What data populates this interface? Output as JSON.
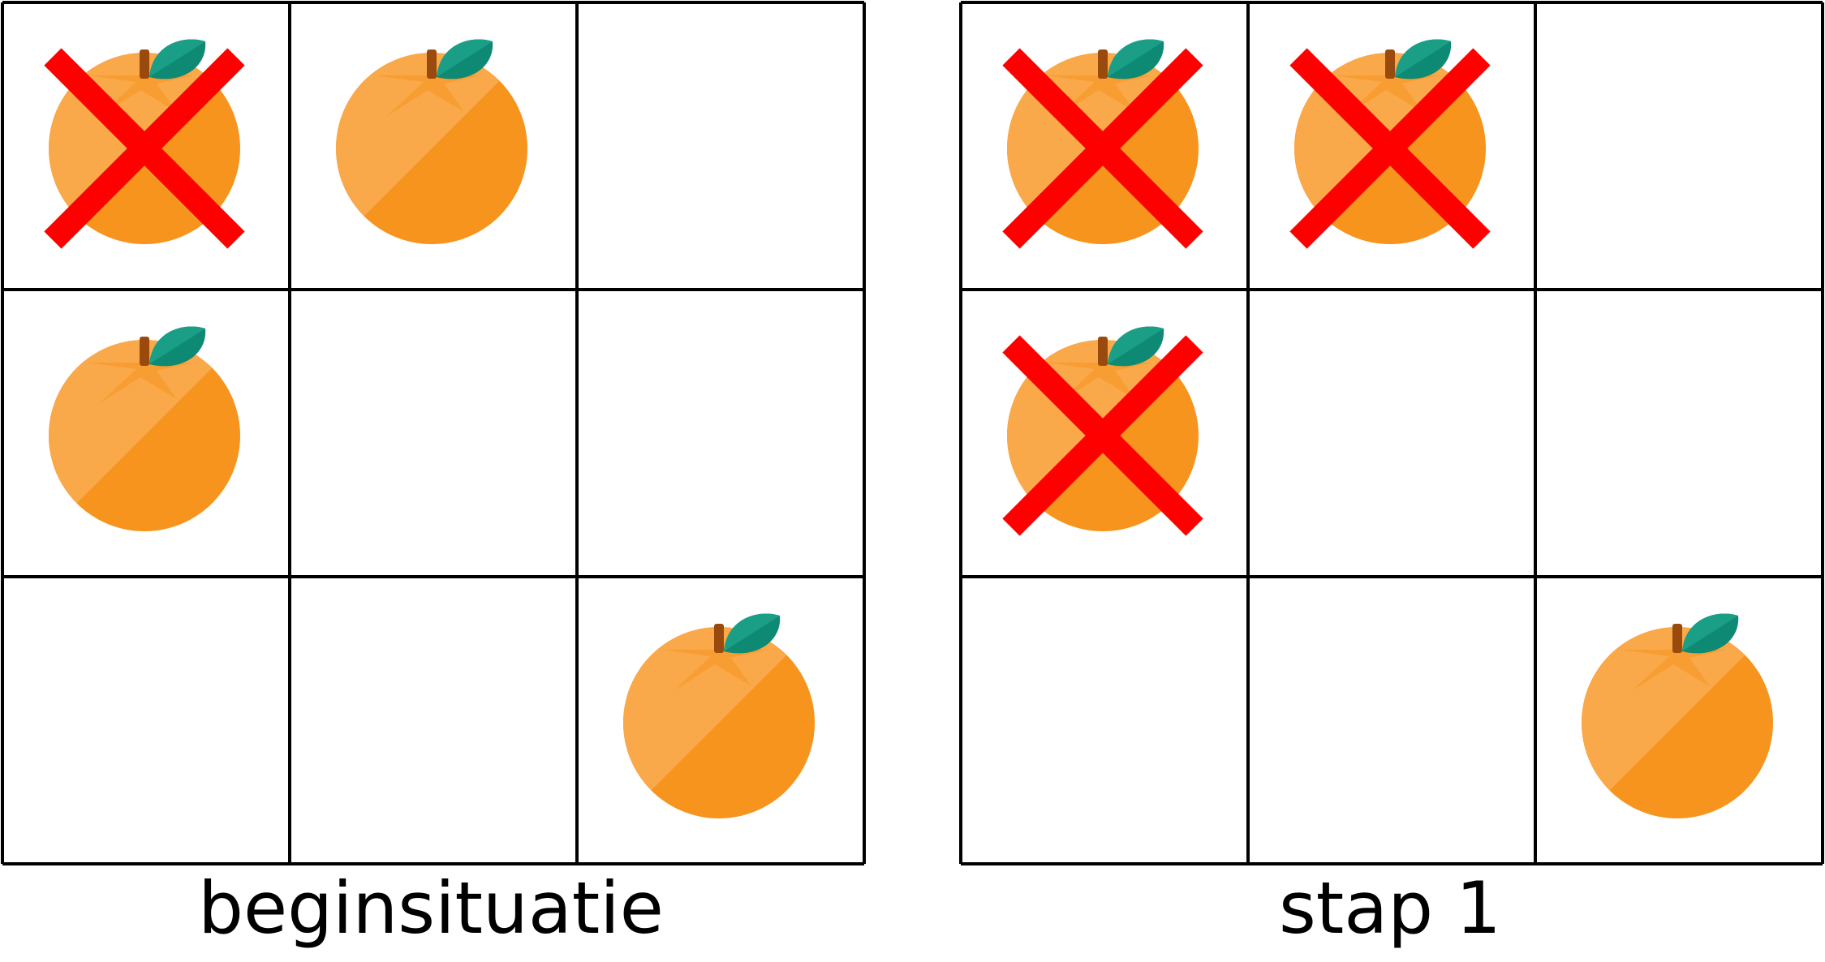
{
  "colors": {
    "grid_line": "#000000",
    "cross": "#ff0000",
    "orange_light": "#f9a84a",
    "orange_dark": "#f7941d",
    "leaf_dark": "#0e8a74",
    "leaf_light": "#1a9e85",
    "stem": "#9a4a0c"
  },
  "icons": {
    "fruit": "orange-icon",
    "mark": "red-cross-icon"
  },
  "grids": [
    {
      "caption": "beginsituatie",
      "rows": 3,
      "cols": 3,
      "cells": [
        [
          {
            "orange": true,
            "crossed": true
          },
          {
            "orange": true,
            "crossed": false
          },
          {
            "orange": false,
            "crossed": false
          }
        ],
        [
          {
            "orange": true,
            "crossed": false
          },
          {
            "orange": false,
            "crossed": false
          },
          {
            "orange": false,
            "crossed": false
          }
        ],
        [
          {
            "orange": false,
            "crossed": false
          },
          {
            "orange": false,
            "crossed": false
          },
          {
            "orange": true,
            "crossed": false
          }
        ]
      ]
    },
    {
      "caption": "stap 1",
      "rows": 3,
      "cols": 3,
      "cells": [
        [
          {
            "orange": true,
            "crossed": true
          },
          {
            "orange": true,
            "crossed": true
          },
          {
            "orange": false,
            "crossed": false
          }
        ],
        [
          {
            "orange": true,
            "crossed": true
          },
          {
            "orange": false,
            "crossed": false
          },
          {
            "orange": false,
            "crossed": false
          }
        ],
        [
          {
            "orange": false,
            "crossed": false
          },
          {
            "orange": false,
            "crossed": false
          },
          {
            "orange": true,
            "crossed": false
          }
        ]
      ]
    }
  ]
}
